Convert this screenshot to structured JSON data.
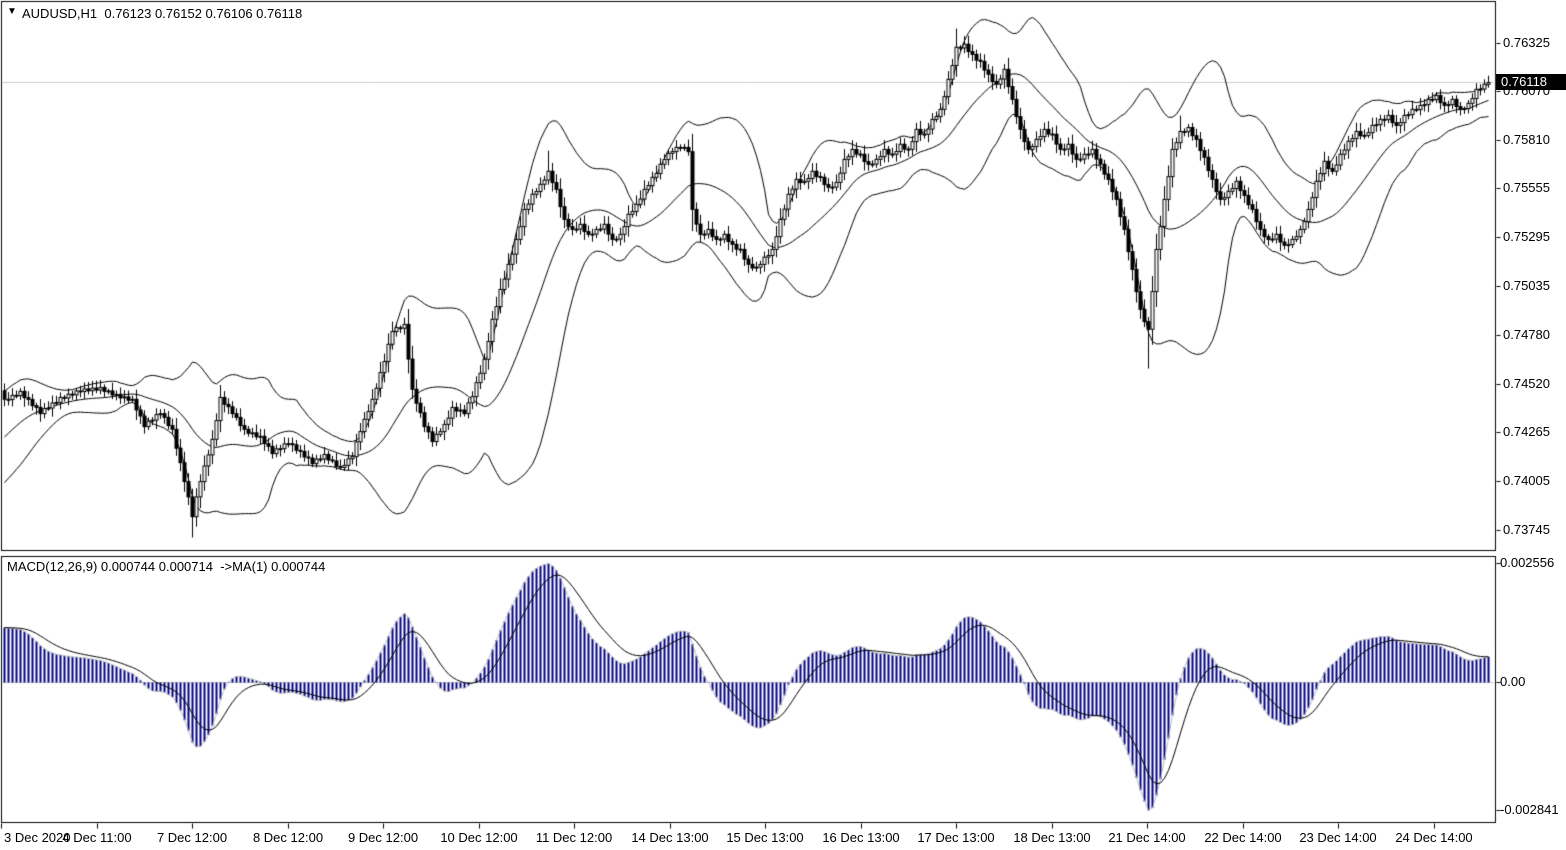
{
  "title": {
    "symbol_period": "AUDUSD,H1",
    "open": "0.76123",
    "high": "0.76152",
    "low": "0.76106",
    "close": "0.76118",
    "full": "AUDUSD,H1  0.76123 0.76152 0.76106 0.76118"
  },
  "macd_label": "MACD(12,26,9) 0.000744 0.000714  ->MA(1) 0.000744",
  "price_tag": "0.76118",
  "dropdown_icon": "▼",
  "colors": {
    "background": "#ffffff",
    "foreground": "#000000",
    "bull_body": "#ffffff",
    "bear_body": "#000000",
    "band_line": "#000000",
    "current_price_line": "#cccccc",
    "histogram": "#000080",
    "histogram_outline": "#c0c0c0",
    "signal_line": "#000000",
    "zero_line": "#c8c8c8",
    "tag_bg": "#000000",
    "tag_fg": "#ffffff"
  },
  "chart_data": {
    "type": "candlestick",
    "symbol": "AUDUSD",
    "timeframe": "H1",
    "panels": {
      "price": {
        "y_axis_ticks": [
          "0.76325",
          "0.76070",
          "0.75810",
          "0.75555",
          "0.75295",
          "0.75035",
          "0.74780",
          "0.74520",
          "0.74265",
          "0.74005",
          "0.73745"
        ],
        "axis_top_price": 0.76542,
        "axis_bottom_price": 0.73639,
        "current_price": 0.76118,
        "overlays": [
          {
            "name": "Bollinger Bands",
            "period": 20,
            "deviation": 2
          }
        ],
        "close_waypoints": [
          [
            0,
            0.74434
          ],
          [
            4,
            0.74476
          ],
          [
            9,
            0.7437
          ],
          [
            14,
            0.74444
          ],
          [
            19,
            0.74487
          ],
          [
            24,
            0.74497
          ],
          [
            28,
            0.7446
          ],
          [
            32,
            0.74434
          ],
          [
            35,
            0.74301
          ],
          [
            39,
            0.7437
          ],
          [
            42,
            0.74275
          ],
          [
            45,
            0.7401
          ],
          [
            47,
            0.73824
          ],
          [
            49,
            0.7401
          ],
          [
            52,
            0.74222
          ],
          [
            54,
            0.74444
          ],
          [
            57,
            0.7437
          ],
          [
            60,
            0.74275
          ],
          [
            64,
            0.74238
          ],
          [
            67,
            0.74158
          ],
          [
            71,
            0.74211
          ],
          [
            74,
            0.74158
          ],
          [
            77,
            0.74105
          ],
          [
            80,
            0.74142
          ],
          [
            84,
            0.74073
          ],
          [
            87,
            0.74142
          ],
          [
            89,
            0.74275
          ],
          [
            92,
            0.74434
          ],
          [
            95,
            0.74646
          ],
          [
            97,
            0.74805
          ],
          [
            100,
            0.74831
          ],
          [
            102,
            0.74487
          ],
          [
            105,
            0.74301
          ],
          [
            107,
            0.74222
          ],
          [
            110,
            0.74301
          ],
          [
            112,
            0.74391
          ],
          [
            115,
            0.7437
          ],
          [
            117,
            0.7446
          ],
          [
            120,
            0.74646
          ],
          [
            122,
            0.74858
          ],
          [
            124,
            0.75016
          ],
          [
            126,
            0.75149
          ],
          [
            128,
            0.75281
          ],
          [
            130,
            0.7544
          ],
          [
            132,
            0.7552
          ],
          [
            134,
            0.75573
          ],
          [
            136,
            0.75642
          ],
          [
            138,
            0.75546
          ],
          [
            140,
            0.75387
          ],
          [
            142,
            0.75334
          ],
          [
            144,
            0.75361
          ],
          [
            146,
            0.75308
          ],
          [
            148,
            0.75334
          ],
          [
            150,
            0.75361
          ],
          [
            152,
            0.75281
          ],
          [
            154,
            0.75308
          ],
          [
            156,
            0.75414
          ],
          [
            158,
            0.75467
          ],
          [
            160,
            0.75546
          ],
          [
            163,
            0.75642
          ],
          [
            165,
            0.75716
          ],
          [
            167,
            0.75758
          ],
          [
            169,
            0.75779
          ],
          [
            171,
            0.75758
          ],
          [
            172,
            0.7544
          ],
          [
            174,
            0.75308
          ],
          [
            176,
            0.75334
          ],
          [
            178,
            0.75281
          ],
          [
            180,
            0.75308
          ],
          [
            182,
            0.75255
          ],
          [
            184,
            0.75228
          ],
          [
            186,
            0.75149
          ],
          [
            188,
            0.75134
          ],
          [
            190,
            0.75187
          ],
          [
            192,
            0.75228
          ],
          [
            194,
            0.75387
          ],
          [
            196,
            0.7552
          ],
          [
            198,
            0.75599
          ],
          [
            200,
            0.75589
          ],
          [
            202,
            0.75642
          ],
          [
            204,
            0.7561
          ],
          [
            206,
            0.75557
          ],
          [
            208,
            0.75583
          ],
          [
            210,
            0.75705
          ],
          [
            212,
            0.75758
          ],
          [
            214,
            0.75732
          ],
          [
            216,
            0.75679
          ],
          [
            218,
            0.75705
          ],
          [
            220,
            0.75758
          ],
          [
            222,
            0.75732
          ],
          [
            224,
            0.75785
          ],
          [
            226,
            0.75758
          ],
          [
            228,
            0.75864
          ],
          [
            230,
            0.75838
          ],
          [
            232,
            0.75917
          ],
          [
            234,
            0.7597
          ],
          [
            236,
            0.76129
          ],
          [
            238,
            0.76299
          ],
          [
            240,
            0.76315
          ],
          [
            242,
            0.76261
          ],
          [
            244,
            0.76224
          ],
          [
            246,
            0.76156
          ],
          [
            248,
            0.76103
          ],
          [
            250,
            0.76182
          ],
          [
            252,
            0.76023
          ],
          [
            254,
            0.75864
          ],
          [
            256,
            0.75758
          ],
          [
            258,
            0.75811
          ],
          [
            260,
            0.75864
          ],
          [
            262,
            0.75838
          ],
          [
            264,
            0.75758
          ],
          [
            266,
            0.75785
          ],
          [
            268,
            0.75705
          ],
          [
            270,
            0.75732
          ],
          [
            272,
            0.75758
          ],
          [
            274,
            0.75679
          ],
          [
            276,
            0.75599
          ],
          [
            278,
            0.75493
          ],
          [
            280,
            0.75334
          ],
          [
            282,
            0.75122
          ],
          [
            284,
            0.7491
          ],
          [
            286,
            0.74805
          ],
          [
            288,
            0.75228
          ],
          [
            290,
            0.75493
          ],
          [
            292,
            0.75758
          ],
          [
            294,
            0.75853
          ],
          [
            296,
            0.75874
          ],
          [
            298,
            0.75811
          ],
          [
            300,
            0.75716
          ],
          [
            302,
            0.75599
          ],
          [
            304,
            0.75493
          ],
          [
            306,
            0.75536
          ],
          [
            308,
            0.75589
          ],
          [
            310,
            0.75514
          ],
          [
            312,
            0.7544
          ],
          [
            314,
            0.75334
          ],
          [
            316,
            0.75281
          ],
          [
            318,
            0.75308
          ],
          [
            320,
            0.7525
          ],
          [
            322,
            0.75281
          ],
          [
            324,
            0.75334
          ],
          [
            326,
            0.7544
          ],
          [
            328,
            0.75589
          ],
          [
            330,
            0.75695
          ],
          [
            332,
            0.75642
          ],
          [
            334,
            0.75732
          ],
          [
            336,
            0.75801
          ],
          [
            338,
            0.75853
          ],
          [
            340,
            0.75832
          ],
          [
            342,
            0.75885
          ],
          [
            344,
            0.75917
          ],
          [
            346,
            0.75938
          ],
          [
            348,
            0.75885
          ],
          [
            350,
            0.75938
          ],
          [
            352,
            0.7597
          ],
          [
            354,
            0.75991
          ],
          [
            356,
            0.76023
          ],
          [
            358,
            0.76044
          ],
          [
            360,
            0.75991
          ],
          [
            362,
            0.76023
          ],
          [
            364,
            0.7597
          ],
          [
            366,
            0.76002
          ],
          [
            368,
            0.76076
          ],
          [
            370,
            0.76103
          ],
          [
            371,
            0.76118
          ]
        ],
        "wick_lows": [
          [
            47,
            0.73708
          ],
          [
            286,
            0.74603
          ]
        ],
        "wick_highs": [
          [
            136,
            0.75757
          ],
          [
            171,
            0.75811
          ],
          [
            238,
            0.76404
          ],
          [
            294,
            0.75943
          ]
        ]
      },
      "macd": {
        "indicator": "MACD",
        "fast": 12,
        "slow": 26,
        "signal_period": 9,
        "y_axis_ticks": [
          "0.002556",
          "0.00",
          "-0.002841"
        ],
        "max": 0.002556,
        "min": -0.002841,
        "current_values": [
          "0.000744",
          "0.000714",
          "0.000744"
        ]
      }
    },
    "x_axis": {
      "labels": [
        "3 Dec 2020",
        "4 Dec 11:00",
        "7 Dec 12:00",
        "8 Dec 12:00",
        "9 Dec 12:00",
        "10 Dec 12:00",
        "11 Dec 12:00",
        "14 Dec 13:00",
        "15 Dec 13:00",
        "16 Dec 13:00",
        "17 Dec 13:00",
        "18 Dec 13:00",
        "21 Dec 14:00",
        "22 Dec 14:00",
        "23 Dec 14:00",
        "24 Dec 14:00"
      ],
      "first_label_left_aligned": true
    }
  }
}
